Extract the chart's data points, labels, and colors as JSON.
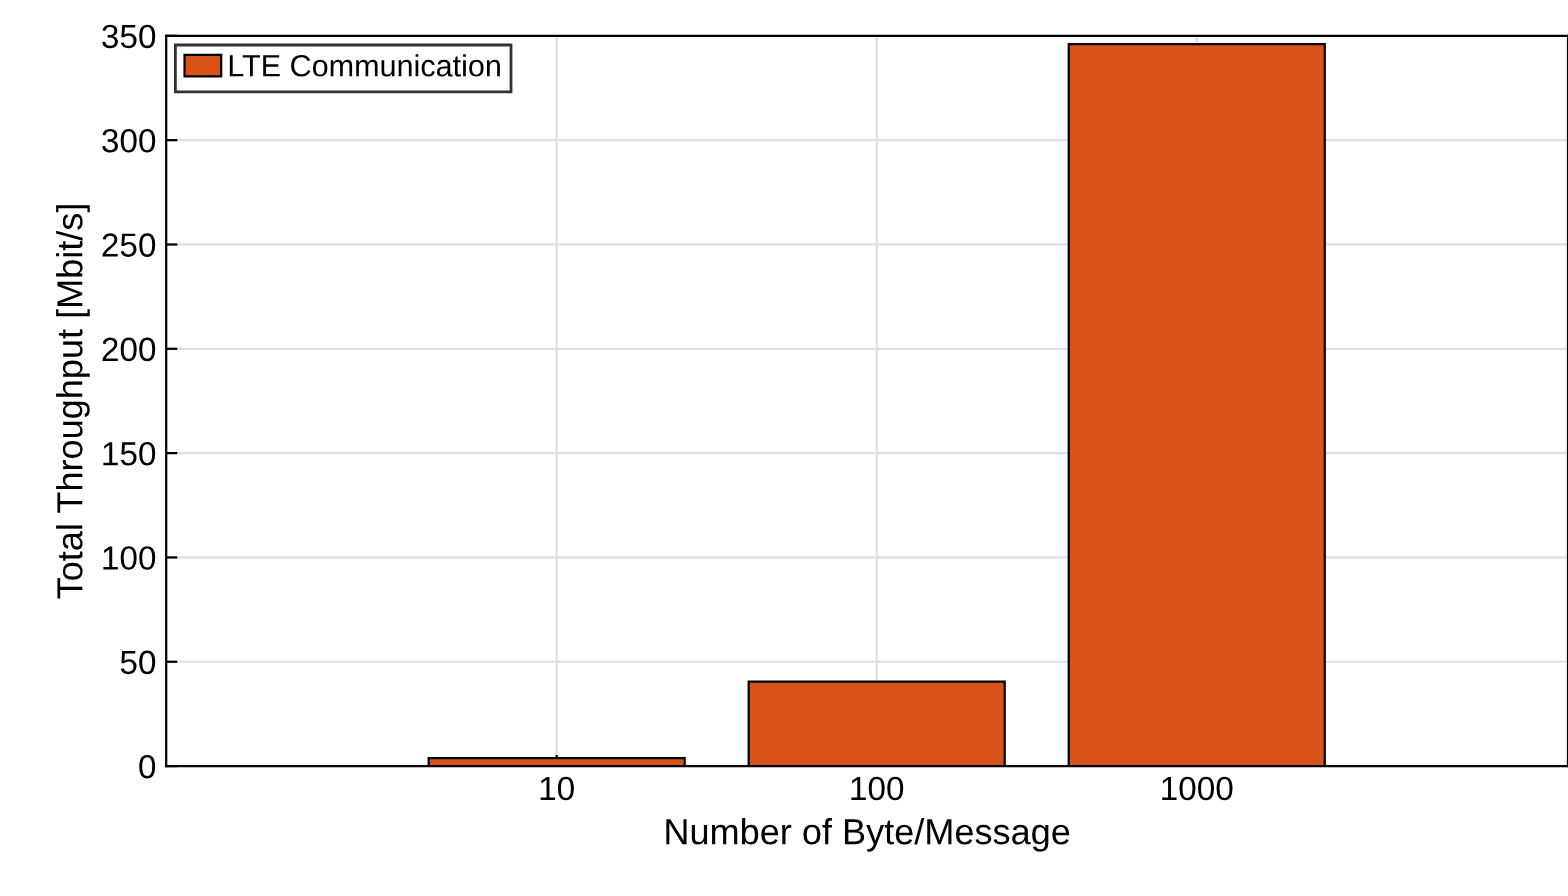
{
  "chart_data": {
    "type": "bar",
    "xlabel": "Number of Byte/Message",
    "ylabel": "Total Throughput [Mbit/s]",
    "categories": [
      "10",
      "100",
      "1000"
    ],
    "series": [
      {
        "name": "LTE Communication",
        "color": "#d95319",
        "values": [
          3.8,
          40.5,
          346
        ]
      }
    ],
    "ylim": [
      0,
      350
    ],
    "yticks": [
      0,
      50,
      100,
      150,
      200,
      250,
      300,
      350
    ],
    "grid": true,
    "legend": "top left"
  }
}
